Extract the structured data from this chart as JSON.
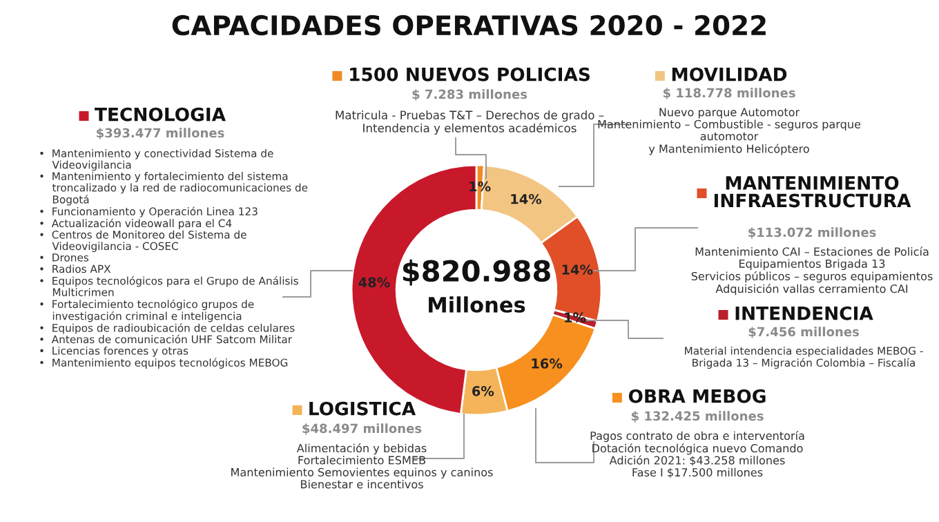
{
  "chart_data": {
    "type": "donut",
    "title": "CAPACIDADES OPERATIVAS 2020 - 2022",
    "categories": [
      "1500 NUEVOS POLICIAS",
      "MOVILIDAD",
      "MANTENIMIENTO\nINFRAESTRUCTURA",
      "INTENDENCIA",
      "OBRA MEBOG",
      "LOGISTICA",
      "TECNOLOGIA"
    ],
    "values": [
      1,
      14,
      14,
      1,
      16,
      6,
      48
    ],
    "legend": "right",
    "value_labels": [
      "1%",
      "14%",
      "14%",
      "1%",
      "16%",
      "6%",
      "48%"
    ],
    "colors": [
      "#f08a24",
      "#f3c582",
      "#e04f28",
      "#b8202c",
      "#f7901e",
      "#f5b45a",
      "#c8192b"
    ],
    "annotations": [
      "$820.988",
      "Millones",
      "$ 7.283 millones",
      "Matricula - Pruebas T&T – Derechos de grado –\nIntendencia y elementos académicos",
      "$ 118.778 millones",
      "Nuevo parque Automotor\nMantenimiento – Combustible - seguros parque\nautomotor\ny Mantenimiento Helicóptero",
      "$113.072 millones",
      "Mantenimiento CAI – Estaciones de Policía\nEquipamientos Brigada 13\nServicios públicos – seguros equipamientos\nAdquisición vallas cerramiento CAI",
      "$7.456 millones",
      "Material intendencia especialidades MEBOG -\nBrigada 13 – Migración Colombia – Fiscalía",
      "$ 132.425 millones",
      "Pagos contrato de obra e interventoría\nDotación tecnológica nuevo Comando\nAdición 2021: $43.258 millones\nFase I $17.500 millones",
      "$48.497 millones",
      "Alimentación y bebidas\nFortalecimiento ESMEB\nMantenimiento Semovientes equinos y caninos\nBienestar e incentivos",
      "$393.477 millones",
      "•  Mantenimiento y conectividad Sistema de\n    Videovigilancia\n•  Mantenimiento y fortalecimiento del sistema\n    troncalizado y la red de radiocomunicaciones de\n    Bogotá\n•  Funcionamiento y Operación Linea 123\n•  Actualización videowall para el C4\n•  Centros de Monitoreo del Sistema de\n    Videovigilancia - COSEC\n•  Drones\n•  Radios APX\n•  Equipos tecnológicos para el Grupo de Análisis\n    Multicrimen\n•  Fortalecimiento tecnológico grupos de\n    investigación criminal e inteligencia\n•  Equipos de radioubicación de celdas celulares\n•  Antenas de comunicación UHF Satcom Militar\n•  Licencias forences y otras\n•  Mantenimiento equipos tecnológicos MEBOG"
    ]
  }
}
